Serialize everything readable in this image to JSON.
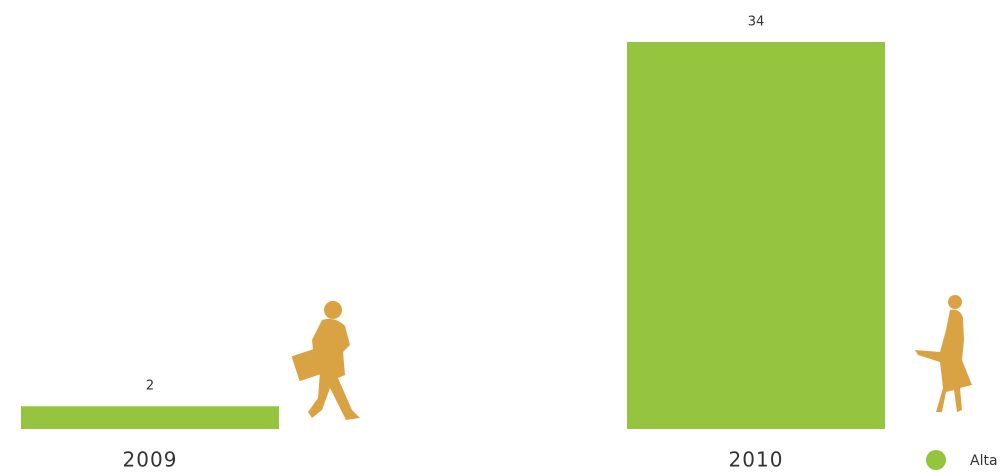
{
  "chart_data": {
    "type": "bar",
    "categories": [
      "2009",
      "2010"
    ],
    "series": [
      {
        "name": "Alta",
        "color": "#95c53f",
        "values": [
          2,
          34
        ]
      }
    ]
  }
}
